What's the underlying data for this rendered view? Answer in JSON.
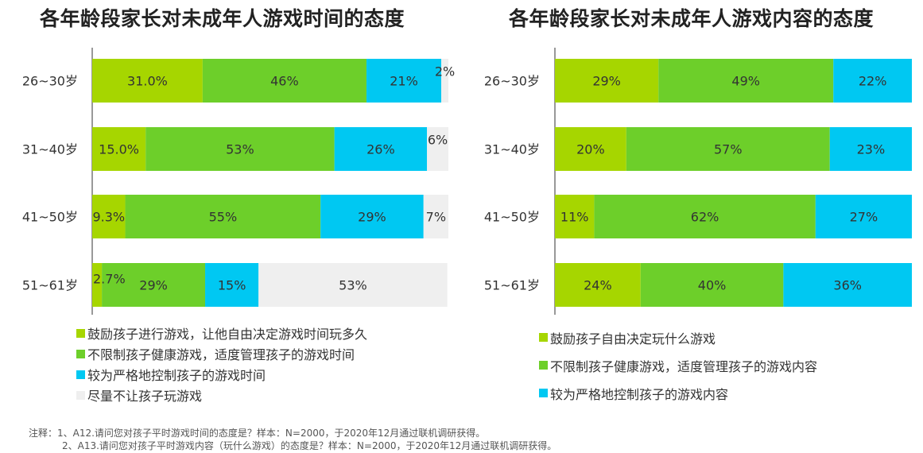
{
  "colors": {
    "encourage": "#a6d600",
    "unlimited": "#6dcf2a",
    "strict": "#00c8f2",
    "forbid": "#efefef",
    "axis": "#555555",
    "label_text": "#333333"
  },
  "chart_data": [
    {
      "type": "bar",
      "stacked": true,
      "orientation": "horizontal",
      "title": "各年龄段家长对未成年人游戏时间的态度",
      "categories": [
        "26~30岁",
        "31~40岁",
        "41~50岁",
        "51~61岁"
      ],
      "series": [
        {
          "name": "鼓励孩子进行游戏，让他自由决定游戏时间玩多久",
          "color_key": "encourage",
          "values": [
            31.0,
            15.0,
            9.3,
            2.7
          ],
          "labels": [
            "31.0%",
            "15.0%",
            "9.3%",
            "2.7%"
          ]
        },
        {
          "name": "不限制孩子健康游戏，适度管理孩子的游戏时间",
          "color_key": "unlimited",
          "values": [
            46,
            53,
            55,
            29
          ],
          "labels": [
            "46%",
            "53%",
            "55%",
            "29%"
          ]
        },
        {
          "name": "较为严格地控制孩子的游戏时间",
          "color_key": "strict",
          "values": [
            21,
            26,
            29,
            15
          ],
          "labels": [
            "21%",
            "26%",
            "29%",
            "15%"
          ]
        },
        {
          "name": "尽量不让孩子玩游戏",
          "color_key": "forbid",
          "values": [
            2,
            6,
            7,
            53
          ],
          "labels": [
            "2%",
            "6%",
            "7%",
            "53%"
          ]
        }
      ],
      "xlim": [
        0,
        100
      ]
    },
    {
      "type": "bar",
      "stacked": true,
      "orientation": "horizontal",
      "title": "各年龄段家长对未成年人游戏内容的态度",
      "categories": [
        "26~30岁",
        "31~40岁",
        "41~50岁",
        "51~61岁"
      ],
      "series": [
        {
          "name": "鼓励孩子自由决定玩什么游戏",
          "color_key": "encourage",
          "values": [
            29,
            20,
            11,
            24
          ],
          "labels": [
            "29%",
            "20%",
            "11%",
            "24%"
          ]
        },
        {
          "name": "不限制孩子健康游戏，适度管理孩子的游戏内容",
          "color_key": "unlimited",
          "values": [
            49,
            57,
            62,
            40
          ],
          "labels": [
            "49%",
            "57%",
            "62%",
            "40%"
          ]
        },
        {
          "name": "较为严格地控制孩子的游戏内容",
          "color_key": "strict",
          "values": [
            22,
            23,
            27,
            36
          ],
          "labels": [
            "22%",
            "23%",
            "27%",
            "36%"
          ]
        }
      ],
      "xlim": [
        0,
        100
      ]
    }
  ],
  "notes": {
    "line1": "注释：1、A12.请问您对孩子平时游戏时间的态度是？样本：N=2000，于2020年12月通过联机调研获得。",
    "line2": "2、A13.请问您对孩子平时游戏内容（玩什么游戏）的态度是？样本：N=2000，于2020年12月通过联机调研获得。"
  }
}
